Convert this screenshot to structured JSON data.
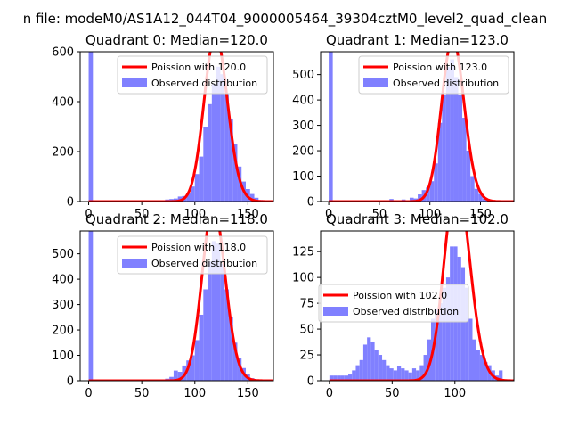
{
  "figure": {
    "suptitle": "n file: modeM0/AS1A12_044T04_9000005464_39304cztM0_level2_quad_clean"
  },
  "chart_data": [
    {
      "type": "bar",
      "title": "Quadrant 0: Median=120.0",
      "median": 120.0,
      "bin_width": 4,
      "xlim": [
        -8,
        174
      ],
      "ylim": [
        0,
        600
      ],
      "xticks": [
        "0",
        "50",
        "100",
        "150"
      ],
      "yticks": [
        "0",
        "200",
        "400",
        "600"
      ],
      "legend_placement": "upper right",
      "hist_color": "#8080ff",
      "poisson_color": "#ff0000",
      "series": [
        {
          "name": "Poission with 120.0",
          "kind": "line",
          "lambda": 120.0
        },
        {
          "name": "Observed distribution",
          "kind": "histogram",
          "x": [
            0,
            72,
            76,
            80,
            84,
            88,
            92,
            96,
            100,
            104,
            108,
            112,
            116,
            120,
            124,
            128,
            132,
            136,
            140,
            144,
            148,
            152,
            156,
            160
          ],
          "values": [
            600,
            8,
            10,
            12,
            20,
            22,
            35,
            60,
            110,
            180,
            300,
            390,
            470,
            540,
            510,
            430,
            330,
            230,
            140,
            80,
            50,
            30,
            15,
            6
          ]
        }
      ]
    },
    {
      "type": "bar",
      "title": "Quadrant 1: Median=123.0",
      "median": 123.0,
      "bin_width": 4,
      "xlim": [
        -8,
        183
      ],
      "ylim": [
        0,
        590
      ],
      "xticks": [
        "0",
        "50",
        "100",
        "150"
      ],
      "yticks": [
        "0",
        "100",
        "200",
        "300",
        "400",
        "500"
      ],
      "legend_placement": "upper right",
      "hist_color": "#8080ff",
      "poisson_color": "#ff0000",
      "series": [
        {
          "name": "Poission with 123.0",
          "kind": "line",
          "lambda": 123.0
        },
        {
          "name": "Observed distribution",
          "kind": "histogram",
          "x": [
            0,
            60,
            72,
            80,
            84,
            88,
            92,
            96,
            100,
            104,
            108,
            112,
            116,
            120,
            124,
            128,
            132,
            136,
            140,
            144,
            148,
            152,
            156
          ],
          "values": [
            590,
            10,
            8,
            15,
            12,
            28,
            45,
            55,
            80,
            150,
            310,
            420,
            530,
            560,
            490,
            420,
            330,
            200,
            100,
            50,
            30,
            12,
            5
          ]
        }
      ]
    },
    {
      "type": "bar",
      "title": "Quadrant 2: Median=118.0",
      "median": 118.0,
      "bin_width": 4,
      "xlim": [
        -8,
        174
      ],
      "ylim": [
        0,
        590
      ],
      "xticks": [
        "0",
        "50",
        "100",
        "150"
      ],
      "yticks": [
        "0",
        "100",
        "200",
        "300",
        "400",
        "500"
      ],
      "legend_placement": "upper right",
      "hist_color": "#8080ff",
      "poisson_color": "#ff0000",
      "series": [
        {
          "name": "Poission with 118.0",
          "kind": "line",
          "lambda": 118.0
        },
        {
          "name": "Observed distribution",
          "kind": "histogram",
          "x": [
            0,
            72,
            76,
            80,
            84,
            88,
            92,
            96,
            100,
            104,
            108,
            112,
            116,
            120,
            124,
            128,
            132,
            136,
            140,
            144,
            148,
            152,
            156
          ],
          "values": [
            590,
            8,
            15,
            40,
            35,
            60,
            80,
            100,
            160,
            260,
            360,
            470,
            550,
            540,
            460,
            360,
            250,
            150,
            90,
            50,
            25,
            10,
            5
          ]
        }
      ]
    },
    {
      "type": "bar",
      "title": "Quadrant 3: Median=102.0",
      "median": 102.0,
      "bin_width": 3,
      "xlim": [
        -7,
        147
      ],
      "ylim": [
        0,
        145
      ],
      "xticks": [
        "0",
        "50",
        "100"
      ],
      "yticks": [
        "0",
        "25",
        "50",
        "75",
        "100",
        "125"
      ],
      "legend_placement": "center left",
      "hist_color": "#8080ff",
      "poisson_color": "#ff0000",
      "series": [
        {
          "name": "Poission with 102.0",
          "kind": "line",
          "lambda": 102.0
        },
        {
          "name": "Observed distribution",
          "kind": "histogram",
          "x": [
            0,
            3,
            6,
            9,
            12,
            15,
            18,
            21,
            24,
            27,
            30,
            33,
            36,
            39,
            42,
            45,
            48,
            51,
            54,
            57,
            60,
            63,
            66,
            69,
            72,
            75,
            78,
            81,
            84,
            87,
            90,
            93,
            96,
            99,
            102,
            105,
            108,
            111,
            114,
            117,
            120,
            123,
            126,
            129,
            132,
            135
          ],
          "values": [
            5,
            5,
            5,
            5,
            5,
            6,
            10,
            15,
            20,
            35,
            42,
            38,
            30,
            25,
            20,
            15,
            12,
            10,
            14,
            12,
            10,
            8,
            12,
            10,
            15,
            25,
            40,
            60,
            70,
            75,
            90,
            100,
            130,
            130,
            120,
            110,
            90,
            60,
            40,
            30,
            25,
            18,
            15,
            10,
            5,
            10
          ]
        }
      ]
    }
  ]
}
